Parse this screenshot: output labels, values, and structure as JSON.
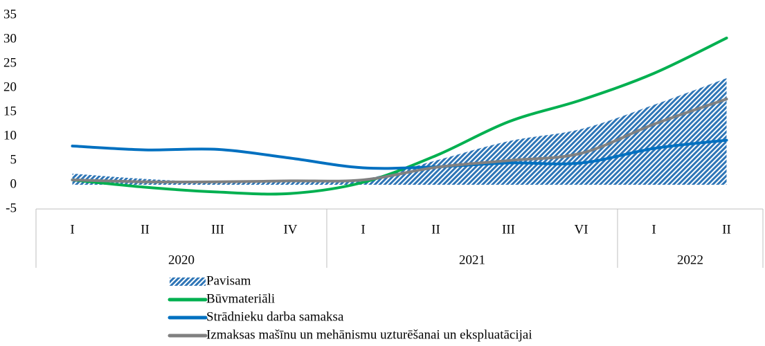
{
  "chart_data": {
    "type": "line",
    "groups": [
      {
        "name": "2020",
        "categories": [
          "I",
          "II",
          "III",
          "IV"
        ]
      },
      {
        "name": "2021",
        "categories": [
          "I",
          "II",
          "III",
          "VI"
        ]
      },
      {
        "name": "2022",
        "categories": [
          "I",
          "II"
        ]
      }
    ],
    "series": [
      {
        "name": "Pavisam",
        "kind": "area",
        "color": "#2e75b6",
        "values": [
          2.3,
          1.2,
          0.6,
          0.8,
          1.2,
          5,
          9,
          11.5,
          16.5,
          22
        ]
      },
      {
        "name": "Būvmateriāli",
        "color": "#00b050",
        "values": [
          1,
          -0.5,
          -1.5,
          -1.8,
          0.5,
          6,
          13,
          17.5,
          23,
          30.3
        ]
      },
      {
        "name": "Strādnieku darba samaksa",
        "color": "#0070c0",
        "values": [
          8,
          7.2,
          7.3,
          5.5,
          3.5,
          3.7,
          4.5,
          4.5,
          7.5,
          9.2
        ]
      },
      {
        "name": "Izmaksas mašīnu un mehānismu uzturēšanai un ekspluatācijai",
        "color": "#808080",
        "values": [
          1,
          0.6,
          0.6,
          0.8,
          1,
          3.6,
          5,
          6.5,
          12.5,
          17.7
        ]
      }
    ],
    "ylim": [
      -5,
      35
    ],
    "yticks": [
      -5,
      0,
      5,
      10,
      15,
      20,
      25,
      30,
      35
    ],
    "grid": false
  }
}
